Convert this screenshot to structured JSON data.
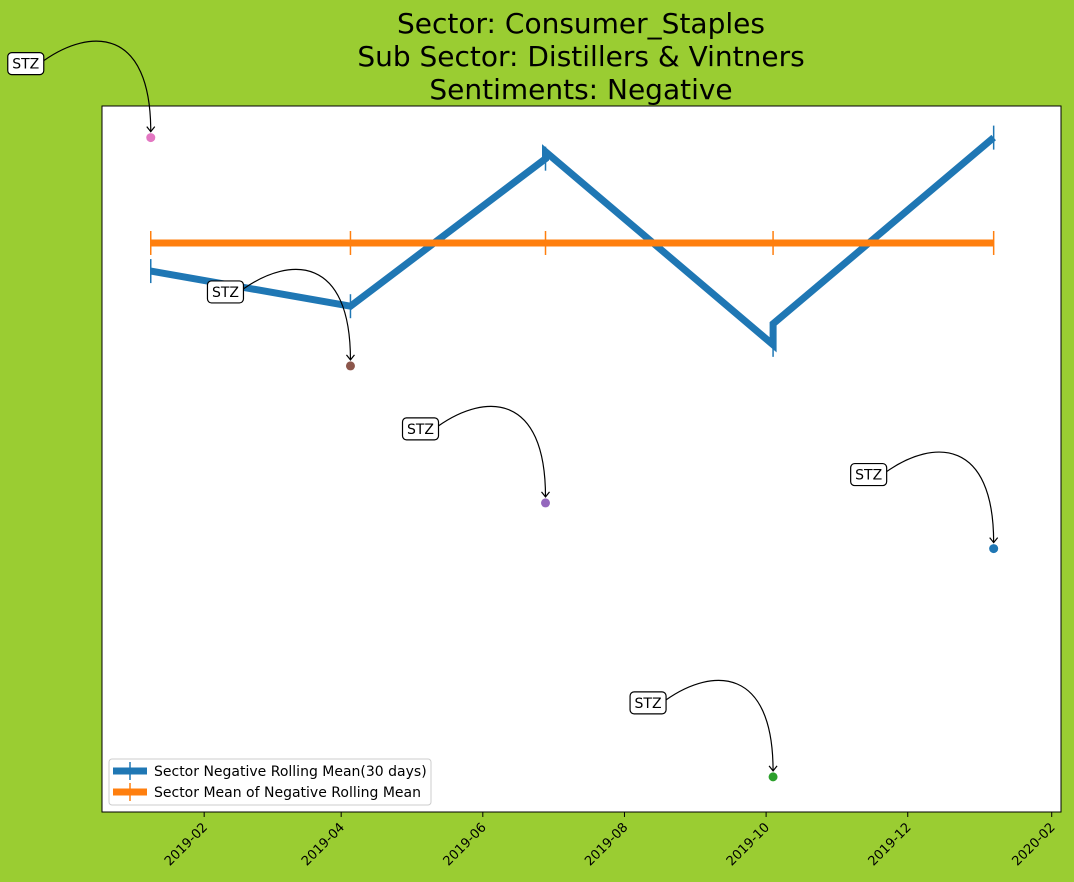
{
  "chart_data": {
    "type": "line",
    "title_lines": [
      "Sector:  Consumer_Staples",
      "Sub Sector:  Distillers & Vintners",
      "Sentiments:  Negative"
    ],
    "xlabel": "",
    "ylabel": "",
    "x_ticks": [
      "2019-02",
      "2019-04",
      "2019-06",
      "2019-08",
      "2019-10",
      "2019-12",
      "2020-02"
    ],
    "x_range": [
      "2018-12-19",
      "2020-02-05"
    ],
    "y_axis_labels_shown": false,
    "grid": false,
    "legend_placement": "lower-left",
    "series": [
      {
        "name": "Sector Negative Rolling Mean(30 days)",
        "color": "#1f77b4",
        "points": [
          {
            "x": "2019-01-09",
            "y": 0.565
          },
          {
            "x": "2019-04-05",
            "y": 0.515
          },
          {
            "x": "2019-06-28",
            "y": 0.725
          },
          {
            "x": "2019-06-28",
            "y": 0.735
          },
          {
            "x": "2019-10-04",
            "y": 0.46
          },
          {
            "x": "2019-10-04",
            "y": 0.49
          },
          {
            "x": "2020-01-07",
            "y": 0.755
          }
        ]
      },
      {
        "name": "Sector Mean of Negative Rolling Mean",
        "color": "#ff7f0e",
        "points": [
          {
            "x": "2019-01-09",
            "y": 0.605
          },
          {
            "x": "2019-04-05",
            "y": 0.605
          },
          {
            "x": "2019-06-28",
            "y": 0.605
          },
          {
            "x": "2019-10-04",
            "y": 0.605
          },
          {
            "x": "2020-01-07",
            "y": 0.605
          }
        ]
      }
    ],
    "annotations": [
      {
        "label": "STZ",
        "x": "2019-01-09",
        "y": 0.755,
        "color": "#e377c2"
      },
      {
        "label": "STZ",
        "x": "2019-04-05",
        "y": 0.43,
        "color": "#8c564b"
      },
      {
        "label": "STZ",
        "x": "2019-06-28",
        "y": 0.235,
        "color": "#9467bd"
      },
      {
        "label": "STZ",
        "x": "2019-10-04",
        "y": -0.155,
        "color": "#2ca02c"
      },
      {
        "label": "STZ",
        "x": "2020-01-07",
        "y": 0.17,
        "color": "#1f77b4"
      }
    ],
    "y_range": [
      -0.205,
      0.8
    ]
  }
}
